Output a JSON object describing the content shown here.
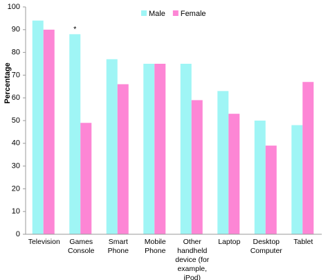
{
  "chart_data": {
    "type": "bar",
    "y_label": "Percentage",
    "annotation": "*",
    "categories": [
      "Television",
      "Games Console",
      "Smart Phone",
      "Mobile Phone",
      "Other handheld device (for example, iPod)",
      "Laptop",
      "Desktop Computer",
      "Tablet"
    ],
    "series": [
      {
        "name": "Male",
        "color": "#9ff5f5",
        "values": [
          94,
          88,
          77,
          75,
          75,
          63,
          50,
          48
        ]
      },
      {
        "name": "Female",
        "color": "#fd86d5",
        "values": [
          90,
          49,
          66,
          75,
          59,
          53,
          39,
          67
        ]
      }
    ],
    "ylim": [
      0,
      100
    ],
    "yticks": [
      0,
      10,
      20,
      30,
      40,
      50,
      60,
      70,
      80,
      90,
      100
    ],
    "grid": false,
    "legend": "top"
  }
}
